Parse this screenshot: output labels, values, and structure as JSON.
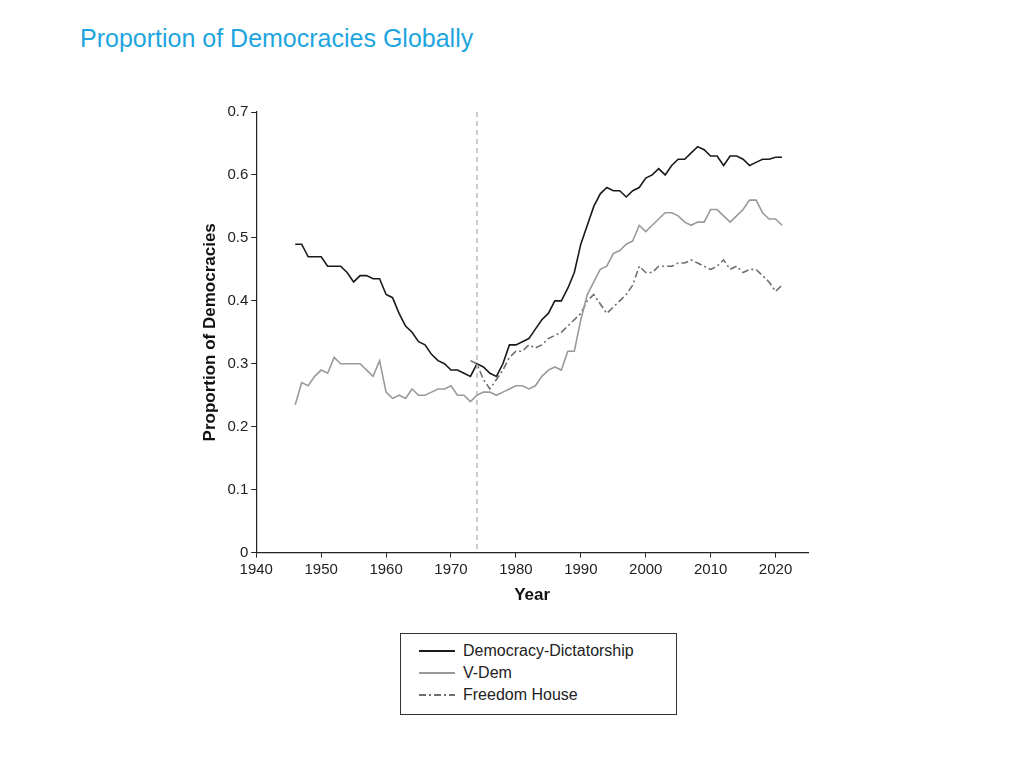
{
  "chart_data": {
    "type": "line",
    "title": "Proportion of Democracies Globally",
    "x_label": "Year",
    "y_label": "Proportion of Democracies",
    "x": [
      1946,
      1947,
      1948,
      1949,
      1950,
      1951,
      1952,
      1953,
      1954,
      1955,
      1956,
      1957,
      1958,
      1959,
      1960,
      1961,
      1962,
      1963,
      1964,
      1965,
      1966,
      1967,
      1968,
      1969,
      1970,
      1971,
      1972,
      1973,
      1974,
      1975,
      1976,
      1977,
      1978,
      1979,
      1980,
      1981,
      1982,
      1983,
      1984,
      1985,
      1986,
      1987,
      1988,
      1989,
      1990,
      1991,
      1992,
      1993,
      1994,
      1995,
      1996,
      1997,
      1998,
      1999,
      2000,
      2001,
      2002,
      2003,
      2004,
      2005,
      2006,
      2007,
      2008,
      2009,
      2010,
      2011,
      2012,
      2013,
      2014,
      2015,
      2016,
      2017,
      2018,
      2019,
      2020,
      2021
    ],
    "series": [
      {
        "name": "Democracy-Dictatorship",
        "color": "#1a1a1a",
        "line_style": "solid",
        "values": [
          0.49,
          0.49,
          0.47,
          0.47,
          0.47,
          0.455,
          0.455,
          0.455,
          0.445,
          0.43,
          0.44,
          0.44,
          0.435,
          0.435,
          0.41,
          0.405,
          0.38,
          0.36,
          0.35,
          0.335,
          0.33,
          0.315,
          0.305,
          0.3,
          0.29,
          0.29,
          0.285,
          0.28,
          0.3,
          0.295,
          0.285,
          0.28,
          0.3,
          0.33,
          0.33,
          0.335,
          0.34,
          0.355,
          0.37,
          0.38,
          0.4,
          0.4,
          0.42,
          0.445,
          0.49,
          0.52,
          0.55,
          0.57,
          0.58,
          0.575,
          0.575,
          0.565,
          0.575,
          0.58,
          0.595,
          0.6,
          0.61,
          0.6,
          0.615,
          0.625,
          0.625,
          0.635,
          0.645,
          0.64,
          0.63,
          0.63,
          0.615,
          0.63,
          0.63,
          0.625,
          0.615,
          0.62,
          0.625,
          0.625,
          0.628,
          0.628
        ]
      },
      {
        "name": "V-Dem",
        "color": "#9a9a9a",
        "line_style": "solid",
        "values": [
          0.235,
          0.27,
          0.265,
          0.28,
          0.29,
          0.285,
          0.31,
          0.3,
          0.3,
          0.3,
          0.3,
          0.29,
          0.28,
          0.305,
          0.255,
          0.245,
          0.25,
          0.245,
          0.26,
          0.25,
          0.25,
          0.255,
          0.26,
          0.26,
          0.265,
          0.25,
          0.25,
          0.24,
          0.25,
          0.255,
          0.255,
          0.25,
          0.255,
          0.26,
          0.265,
          0.265,
          0.26,
          0.265,
          0.28,
          0.29,
          0.295,
          0.29,
          0.32,
          0.32,
          0.37,
          0.41,
          0.43,
          0.45,
          0.455,
          0.475,
          0.48,
          0.49,
          0.495,
          0.52,
          0.51,
          0.52,
          0.53,
          0.54,
          0.54,
          0.535,
          0.525,
          0.52,
          0.525,
          0.525,
          0.545,
          0.545,
          0.535,
          0.525,
          0.535,
          0.545,
          0.56,
          0.56,
          0.54,
          0.53,
          0.53,
          0.52
        ]
      },
      {
        "name": "Freedom House",
        "color": "#6e6e6e",
        "line_style": "dashdot",
        "values": [
          null,
          null,
          null,
          null,
          null,
          null,
          null,
          null,
          null,
          null,
          null,
          null,
          null,
          null,
          null,
          null,
          null,
          null,
          null,
          null,
          null,
          null,
          null,
          null,
          null,
          null,
          null,
          0.305,
          0.3,
          0.275,
          0.26,
          0.275,
          0.29,
          0.31,
          0.32,
          0.32,
          0.33,
          0.325,
          0.33,
          0.34,
          0.345,
          0.35,
          0.36,
          0.37,
          0.38,
          0.4,
          0.41,
          0.395,
          0.38,
          0.39,
          0.4,
          0.41,
          0.425,
          0.455,
          0.445,
          0.445,
          0.455,
          0.455,
          0.455,
          0.46,
          0.46,
          0.465,
          0.46,
          0.455,
          0.45,
          0.455,
          0.465,
          0.45,
          0.455,
          0.445,
          0.45,
          0.45,
          0.44,
          0.43,
          0.415,
          0.425
        ]
      }
    ],
    "xlim": [
      1940,
      2025
    ],
    "xticks": [
      1940,
      1950,
      1960,
      1970,
      1980,
      1990,
      2000,
      2010,
      2020
    ],
    "ylim": [
      0,
      0.7
    ],
    "yticks": [
      0,
      0.1,
      0.2,
      0.3,
      0.4,
      0.5,
      0.6,
      0.7
    ],
    "annotations": [
      {
        "type": "vline",
        "x": 1974,
        "color": "#aaaaaa",
        "line_style": "dashed"
      }
    ],
    "grid": false,
    "legend": "bottom"
  }
}
